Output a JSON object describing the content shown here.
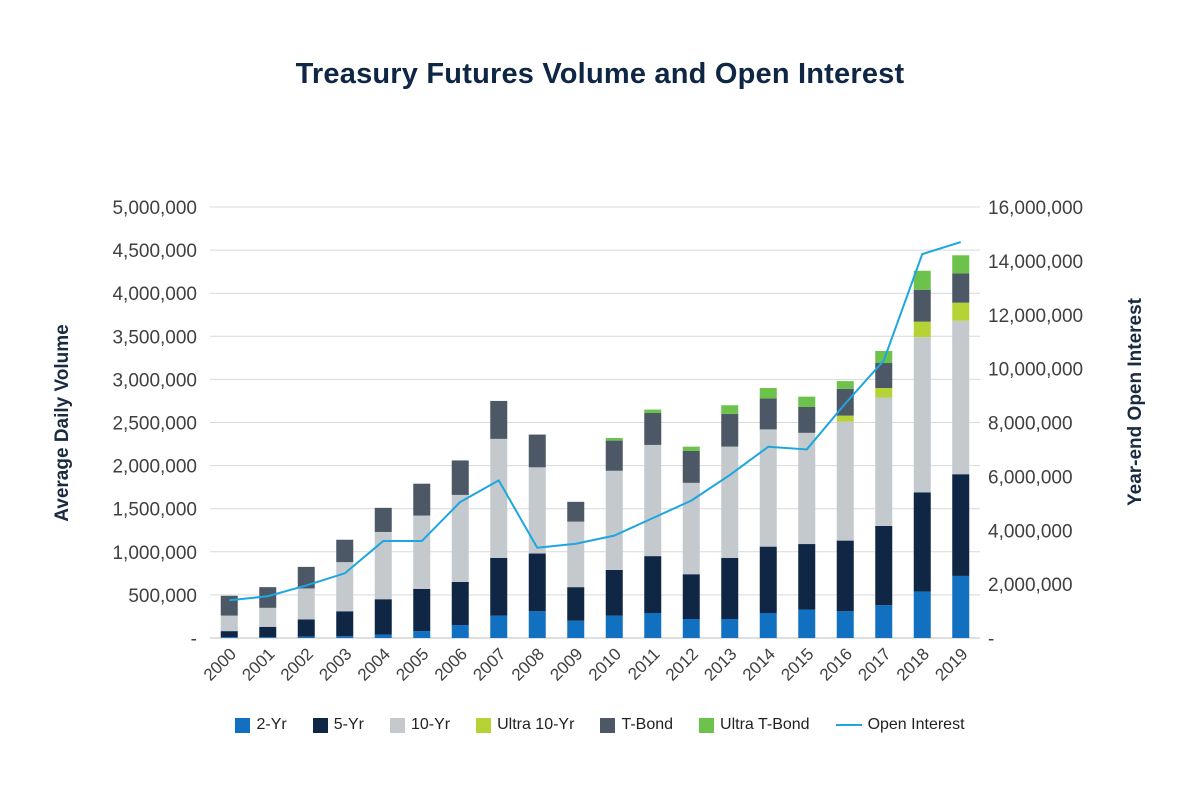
{
  "chart_data": {
    "type": "bar",
    "title": "Treasury Futures Volume and Open Interest",
    "ylabel": "Average Daily Volume",
    "ylabel_right": "Year-end Open Interest",
    "ylim": [
      0,
      5000000
    ],
    "ylim_right": [
      0,
      16000000
    ],
    "yticks": [
      "-",
      "500,000",
      "1,000,000",
      "1,500,000",
      "2,000,000",
      "2,500,000",
      "3,000,000",
      "3,500,000",
      "4,000,000",
      "4,500,000",
      "5,000,000"
    ],
    "yticks_right": [
      "-",
      "2,000,000",
      "4,000,000",
      "6,000,000",
      "8,000,000",
      "10,000,000",
      "12,000,000",
      "14,000,000",
      "16,000,000"
    ],
    "categories": [
      "2000",
      "2001",
      "2002",
      "2003",
      "2004",
      "2005",
      "2006",
      "2007",
      "2008",
      "2009",
      "2010",
      "2011",
      "2012",
      "2013",
      "2014",
      "2015",
      "2016",
      "2017",
      "2018",
      "2019"
    ],
    "stacked": true,
    "series": [
      {
        "name": "2-Yr",
        "color": "#1170c0",
        "values": [
          10000,
          10000,
          15000,
          20000,
          40000,
          80000,
          150000,
          260000,
          310000,
          200000,
          260000,
          290000,
          220000,
          220000,
          290000,
          330000,
          310000,
          380000,
          540000,
          720000
        ]
      },
      {
        "name": "5-Yr",
        "color": "#0f2744",
        "values": [
          70000,
          120000,
          200000,
          290000,
          410000,
          490000,
          500000,
          670000,
          670000,
          390000,
          530000,
          660000,
          520000,
          710000,
          770000,
          760000,
          820000,
          920000,
          1150000,
          1180000
        ]
      },
      {
        "name": "10-Yr",
        "color": "#c4c9ce",
        "values": [
          180000,
          220000,
          360000,
          570000,
          780000,
          850000,
          1010000,
          1380000,
          1000000,
          760000,
          1150000,
          1290000,
          1060000,
          1290000,
          1360000,
          1290000,
          1380000,
          1490000,
          1800000,
          1780000
        ]
      },
      {
        "name": "Ultra 10-Yr",
        "color": "#b5d334",
        "values": [
          0,
          0,
          0,
          0,
          0,
          0,
          0,
          0,
          0,
          0,
          0,
          0,
          0,
          0,
          0,
          0,
          70000,
          110000,
          180000,
          210000
        ]
      },
      {
        "name": "T-Bond",
        "color": "#4c5866",
        "values": [
          230000,
          240000,
          250000,
          260000,
          280000,
          370000,
          400000,
          440000,
          380000,
          230000,
          350000,
          370000,
          370000,
          380000,
          360000,
          300000,
          310000,
          290000,
          370000,
          340000
        ]
      },
      {
        "name": "Ultra T-Bond",
        "color": "#6cc24a",
        "values": [
          0,
          0,
          0,
          0,
          0,
          0,
          0,
          0,
          0,
          0,
          30000,
          40000,
          50000,
          100000,
          120000,
          120000,
          90000,
          140000,
          220000,
          210000
        ]
      }
    ],
    "line": {
      "name": "Open Interest",
      "color": "#1ea6e0",
      "axis": "right",
      "values": [
        1400000,
        1550000,
        1950000,
        2400000,
        3600000,
        3600000,
        5050000,
        5850000,
        3350000,
        3500000,
        3800000,
        4450000,
        5100000,
        6050000,
        7100000,
        7000000,
        8700000,
        10300000,
        14250000,
        14700000
      ]
    },
    "legend": [
      {
        "name": "2-Yr",
        "color": "#1170c0",
        "kind": "swatch"
      },
      {
        "name": "5-Yr",
        "color": "#0f2744",
        "kind": "swatch"
      },
      {
        "name": "10-Yr",
        "color": "#c4c9ce",
        "kind": "swatch"
      },
      {
        "name": "Ultra 10-Yr",
        "color": "#b5d334",
        "kind": "swatch"
      },
      {
        "name": "T-Bond",
        "color": "#4c5866",
        "kind": "swatch"
      },
      {
        "name": "Ultra T-Bond",
        "color": "#6cc24a",
        "kind": "swatch"
      },
      {
        "name": "Open Interest",
        "color": "#1ea6e0",
        "kind": "line"
      }
    ],
    "legend_position": "bottom",
    "grid": true
  }
}
